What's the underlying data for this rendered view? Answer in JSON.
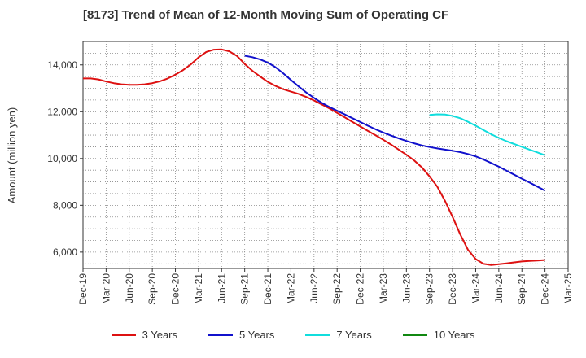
{
  "chart_data": {
    "type": "line",
    "title": "[8173]  Trend of Mean of 12-Month Moving Sum of Operating CF",
    "xlabel": "",
    "ylabel": "Amount (million yen)",
    "ylim": [
      5300,
      15000
    ],
    "yticks": [
      6000,
      8000,
      10000,
      12000,
      14000
    ],
    "ytick_labels": [
      "6,000",
      "8,000",
      "10,000",
      "12,000",
      "14,000"
    ],
    "xticks": [
      "Dec-19",
      "Mar-20",
      "Jun-20",
      "Sep-20",
      "Dec-20",
      "Mar-21",
      "Jun-21",
      "Sep-21",
      "Dec-21",
      "Mar-22",
      "Jun-22",
      "Sep-22",
      "Dec-22",
      "Mar-23",
      "Jun-23",
      "Sep-23",
      "Dec-23",
      "Mar-24",
      "Jun-24",
      "Sep-24",
      "Dec-24",
      "Mar-25"
    ],
    "x_months_note": "x values are months since Dec-19",
    "series": [
      {
        "name": "3 Years",
        "color": "#dd1111",
        "x": [
          0,
          1,
          2,
          3,
          4,
          5,
          6,
          7,
          8,
          9,
          10,
          11,
          12,
          13,
          14,
          15,
          16,
          17,
          18,
          19,
          20,
          21,
          22,
          23,
          24,
          25,
          26,
          27,
          28,
          29,
          30,
          31,
          32,
          33,
          34,
          35,
          36,
          37,
          38,
          39,
          40,
          41,
          42,
          43,
          44,
          45,
          46,
          47,
          48,
          49,
          50,
          51,
          52,
          53,
          54,
          55,
          56,
          57,
          58,
          59,
          60
        ],
        "values": [
          13420,
          13420,
          13380,
          13290,
          13220,
          13170,
          13150,
          13150,
          13170,
          13220,
          13300,
          13420,
          13580,
          13780,
          14020,
          14320,
          14550,
          14650,
          14660,
          14580,
          14380,
          14040,
          13750,
          13500,
          13280,
          13100,
          12960,
          12860,
          12760,
          12630,
          12480,
          12310,
          12140,
          11950,
          11760,
          11560,
          11370,
          11180,
          10990,
          10800,
          10600,
          10380,
          10160,
          9920,
          9620,
          9240,
          8800,
          8200,
          7500,
          6750,
          6100,
          5700,
          5500,
          5450,
          5480,
          5520,
          5560,
          5600,
          5620,
          5640,
          5660
        ]
      },
      {
        "name": "5 Years",
        "color": "#1111cc",
        "x": [
          21,
          22,
          23,
          24,
          25,
          26,
          27,
          28,
          29,
          30,
          31,
          32,
          33,
          34,
          35,
          36,
          37,
          38,
          39,
          40,
          41,
          42,
          43,
          44,
          45,
          46,
          47,
          48,
          49,
          50,
          51,
          52,
          53,
          54,
          55,
          56,
          57,
          58,
          59,
          60
        ],
        "values": [
          14390,
          14330,
          14230,
          14100,
          13900,
          13640,
          13360,
          13080,
          12820,
          12590,
          12380,
          12200,
          12040,
          11880,
          11720,
          11560,
          11400,
          11250,
          11110,
          10980,
          10860,
          10750,
          10650,
          10560,
          10490,
          10430,
          10380,
          10330,
          10270,
          10190,
          10090,
          9960,
          9810,
          9650,
          9480,
          9310,
          9140,
          8970,
          8800,
          8630
        ]
      },
      {
        "name": "7 Years",
        "color": "#11dddd",
        "x": [
          45,
          46,
          47,
          48,
          49,
          50,
          51,
          52,
          53,
          54,
          55,
          56,
          57,
          58,
          59,
          60
        ],
        "values": [
          11860,
          11890,
          11880,
          11820,
          11720,
          11570,
          11400,
          11220,
          11040,
          10880,
          10740,
          10620,
          10500,
          10380,
          10260,
          10140
        ]
      },
      {
        "name": "10 Years",
        "color": "#118811",
        "x": [],
        "values": []
      }
    ],
    "grid": true,
    "legend_position": "bottom-center"
  }
}
